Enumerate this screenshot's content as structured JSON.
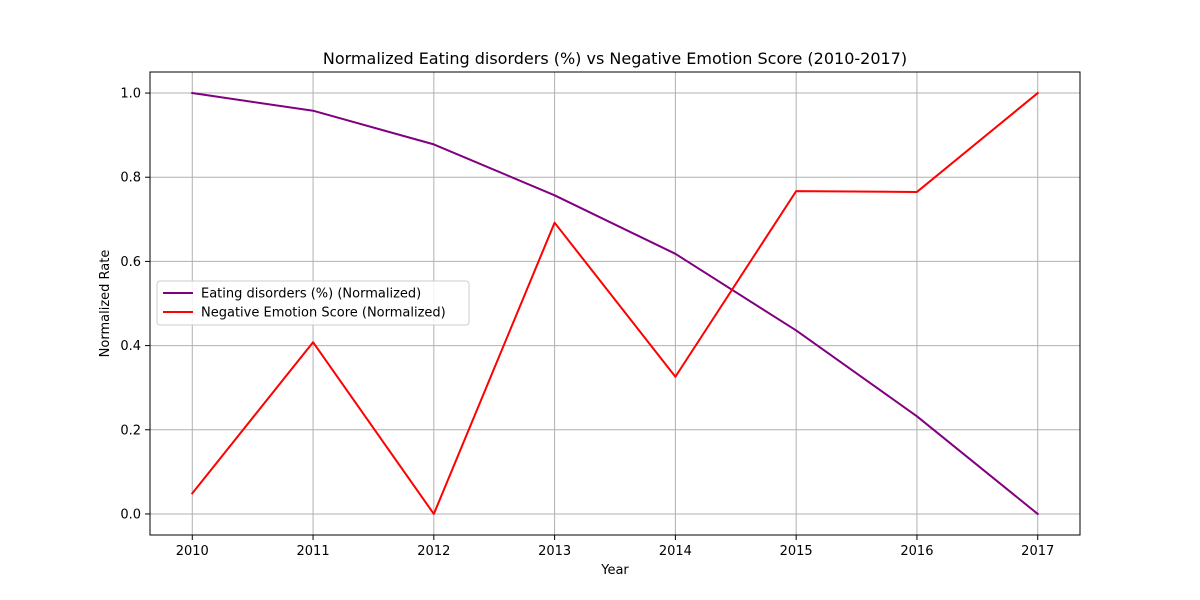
{
  "chart_data": {
    "type": "line",
    "title": "Normalized Eating disorders (%) vs Negative Emotion Score (2010-2017)",
    "xlabel": "Year",
    "ylabel": "Normalized Rate",
    "x": [
      2010,
      2011,
      2012,
      2013,
      2014,
      2015,
      2016,
      2017
    ],
    "xlim": [
      2009.65,
      2017.35
    ],
    "ylim": [
      -0.05,
      1.05
    ],
    "yticks": [
      0.0,
      0.2,
      0.4,
      0.6,
      0.8,
      1.0
    ],
    "ytick_labels": [
      "0.0",
      "0.2",
      "0.4",
      "0.6",
      "0.8",
      "1.0"
    ],
    "xtick_labels": [
      "2010",
      "2011",
      "2012",
      "2013",
      "2014",
      "2015",
      "2016",
      "2017"
    ],
    "grid": true,
    "legend_position": "center-left",
    "series": [
      {
        "name": "Eating disorders (%) (Normalized)",
        "color": "#800080",
        "values": [
          1.0,
          0.958,
          0.878,
          0.757,
          0.618,
          0.436,
          0.232,
          0.0
        ]
      },
      {
        "name": "Negative Emotion Score (Normalized)",
        "color": "#ff0000",
        "values": [
          0.049,
          0.408,
          0.0,
          0.692,
          0.326,
          0.767,
          0.765,
          1.0
        ]
      }
    ]
  }
}
